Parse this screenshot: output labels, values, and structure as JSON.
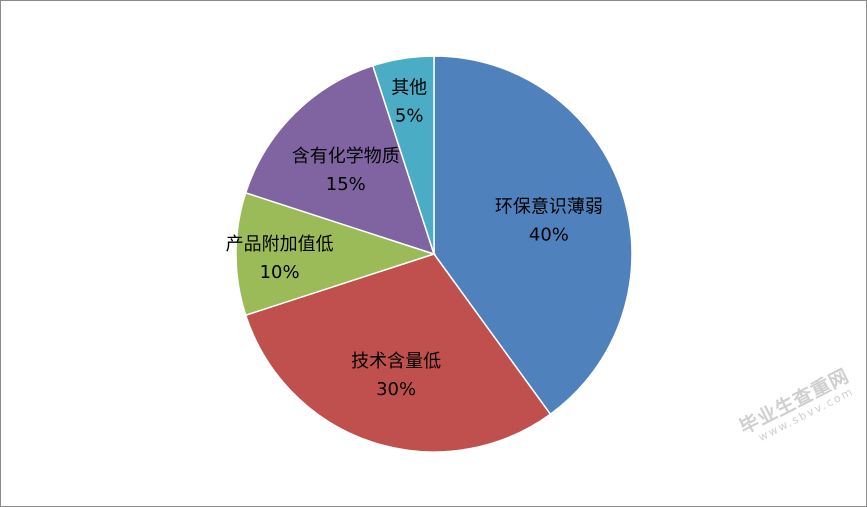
{
  "chart_data": {
    "type": "pie",
    "title": "",
    "slices": [
      {
        "label": "环保意识薄弱",
        "percent_label": "40%",
        "value": 40,
        "color": "#4F81BD"
      },
      {
        "label": "技术含量低",
        "percent_label": "30%",
        "value": 30,
        "color": "#C0504D"
      },
      {
        "label": "产品附加值低",
        "percent_label": "10%",
        "value": 10,
        "color": "#9BBB59"
      },
      {
        "label": "含有化学物质",
        "percent_label": "15%",
        "value": 15,
        "color": "#8064A2"
      },
      {
        "label": "其他",
        "percent_label": "5%",
        "value": 5,
        "color": "#4BACC6"
      }
    ],
    "start": "12 o'clock",
    "direction": "clockwise",
    "legend": "none",
    "data_labels": "inside"
  },
  "watermark": {
    "main": "毕业生查重网",
    "sub": "www.sbvv.com"
  }
}
